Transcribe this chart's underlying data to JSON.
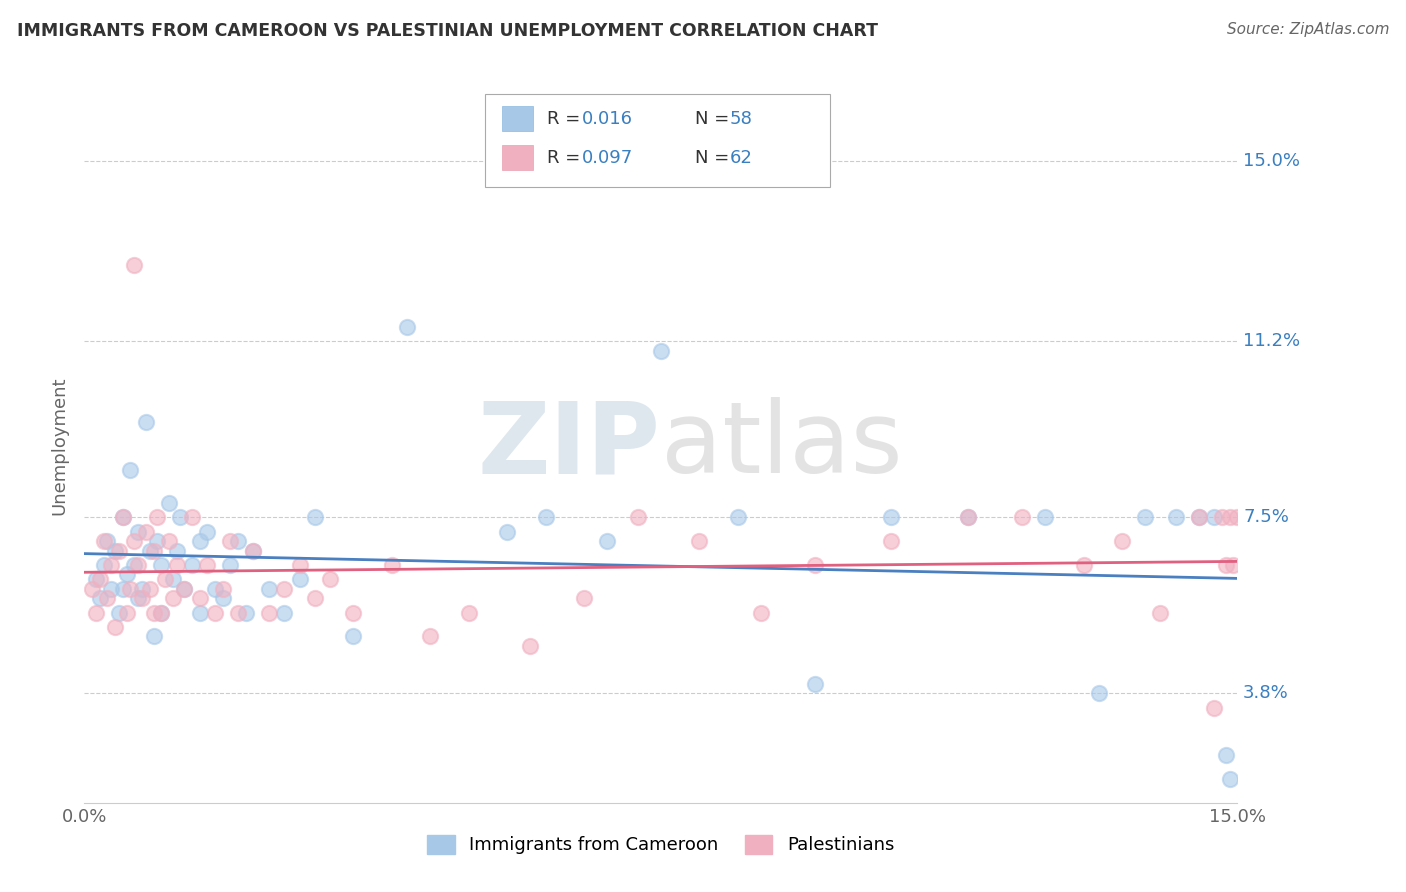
{
  "title": "IMMIGRANTS FROM CAMEROON VS PALESTINIAN UNEMPLOYMENT CORRELATION CHART",
  "source": "Source: ZipAtlas.com",
  "ylabel": "Unemployment",
  "ytick_labels": [
    "3.8%",
    "7.5%",
    "11.2%",
    "15.0%"
  ],
  "ytick_values": [
    3.8,
    7.5,
    11.2,
    15.0
  ],
  "xlim": [
    0.0,
    15.0
  ],
  "ylim": [
    1.5,
    16.5
  ],
  "legend_r1": "0.016",
  "legend_n1": "58",
  "legend_r2": "0.097",
  "legend_n2": "62",
  "color_blue": "#a8c8e8",
  "color_pink": "#f0b0c0",
  "color_line_blue": "#4a7fc0",
  "color_line_pink": "#e06080",
  "color_text_blue": "#3a7fc0",
  "background_color": "#ffffff",
  "watermark_zip": "ZIP",
  "watermark_atlas": "atlas",
  "legend_label1": "Immigrants from Cameroon",
  "legend_label2": "Palestinians",
  "cameroon_x": [
    0.15,
    0.2,
    0.25,
    0.3,
    0.35,
    0.4,
    0.45,
    0.5,
    0.5,
    0.55,
    0.6,
    0.65,
    0.7,
    0.7,
    0.75,
    0.8,
    0.85,
    0.9,
    0.95,
    1.0,
    1.0,
    1.1,
    1.15,
    1.2,
    1.25,
    1.3,
    1.4,
    1.5,
    1.5,
    1.6,
    1.7,
    1.8,
    1.9,
    2.0,
    2.1,
    2.2,
    2.4,
    2.6,
    2.8,
    3.0,
    3.5,
    4.2,
    5.5,
    6.0,
    6.8,
    7.5,
    8.5,
    9.5,
    10.5,
    11.5,
    12.5,
    13.2,
    13.8,
    14.2,
    14.5,
    14.7,
    14.85,
    14.9
  ],
  "cameroon_y": [
    6.2,
    5.8,
    6.5,
    7.0,
    6.0,
    6.8,
    5.5,
    7.5,
    6.0,
    6.3,
    8.5,
    6.5,
    7.2,
    5.8,
    6.0,
    9.5,
    6.8,
    5.0,
    7.0,
    6.5,
    5.5,
    7.8,
    6.2,
    6.8,
    7.5,
    6.0,
    6.5,
    7.0,
    5.5,
    7.2,
    6.0,
    5.8,
    6.5,
    7.0,
    5.5,
    6.8,
    6.0,
    5.5,
    6.2,
    7.5,
    5.0,
    11.5,
    7.2,
    7.5,
    7.0,
    11.0,
    7.5,
    4.0,
    7.5,
    7.5,
    7.5,
    3.8,
    7.5,
    7.5,
    7.5,
    7.5,
    2.5,
    2.0
  ],
  "palestinians_x": [
    0.1,
    0.15,
    0.2,
    0.25,
    0.3,
    0.35,
    0.4,
    0.45,
    0.5,
    0.55,
    0.6,
    0.65,
    0.65,
    0.7,
    0.75,
    0.8,
    0.85,
    0.9,
    0.9,
    0.95,
    1.0,
    1.05,
    1.1,
    1.15,
    1.2,
    1.3,
    1.4,
    1.5,
    1.6,
    1.7,
    1.8,
    1.9,
    2.0,
    2.2,
    2.4,
    2.6,
    2.8,
    3.0,
    3.2,
    3.5,
    4.0,
    4.5,
    5.0,
    5.8,
    6.5,
    7.2,
    8.0,
    8.8,
    9.5,
    10.5,
    11.5,
    12.2,
    13.0,
    13.5,
    14.0,
    14.5,
    14.7,
    14.8,
    14.85,
    14.9,
    14.95,
    15.0
  ],
  "palestinians_y": [
    6.0,
    5.5,
    6.2,
    7.0,
    5.8,
    6.5,
    5.2,
    6.8,
    7.5,
    5.5,
    6.0,
    12.8,
    7.0,
    6.5,
    5.8,
    7.2,
    6.0,
    5.5,
    6.8,
    7.5,
    5.5,
    6.2,
    7.0,
    5.8,
    6.5,
    6.0,
    7.5,
    5.8,
    6.5,
    5.5,
    6.0,
    7.0,
    5.5,
    6.8,
    5.5,
    6.0,
    6.5,
    5.8,
    6.2,
    5.5,
    6.5,
    5.0,
    5.5,
    4.8,
    5.8,
    7.5,
    7.0,
    5.5,
    6.5,
    7.0,
    7.5,
    7.5,
    6.5,
    7.0,
    5.5,
    7.5,
    3.5,
    7.5,
    6.5,
    7.5,
    6.5,
    7.5
  ]
}
